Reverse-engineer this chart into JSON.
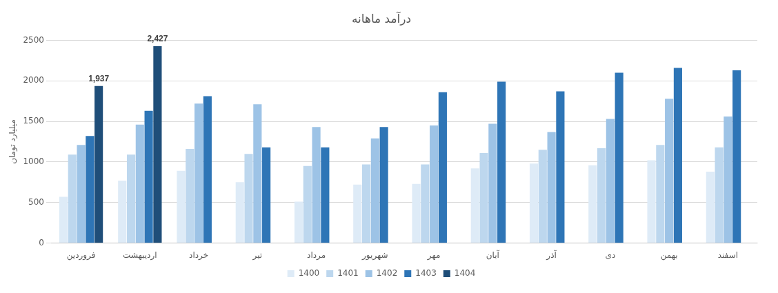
{
  "chart_data": {
    "type": "bar",
    "title": "درآمد ماهانه",
    "ylabel": "میلیارد تومان",
    "categories": [
      "فروردین",
      "اردیبهشت",
      "خرداد",
      "تیر",
      "مرداد",
      "شهریور",
      "مهر",
      "آبان",
      "آذر",
      "دی",
      "بهمن",
      "اسفند"
    ],
    "series": [
      {
        "name": "1400",
        "color": "#deebf7",
        "values": [
          570,
          770,
          890,
          750,
          510,
          720,
          730,
          920,
          980,
          960,
          1020,
          880
        ]
      },
      {
        "name": "1401",
        "color": "#bdd7ee",
        "values": [
          1090,
          1090,
          1160,
          1100,
          950,
          970,
          970,
          1110,
          1150,
          1170,
          1210,
          1180
        ]
      },
      {
        "name": "1402",
        "color": "#9dc3e6",
        "values": [
          1210,
          1460,
          1720,
          1710,
          1430,
          1290,
          1450,
          1470,
          1370,
          1530,
          1780,
          1560
        ]
      },
      {
        "name": "1403",
        "color": "#2e75b6",
        "values": [
          1320,
          1630,
          1810,
          1180,
          1180,
          1430,
          1860,
          1990,
          1870,
          2100,
          2160,
          2130
        ]
      },
      {
        "name": "1404",
        "color": "#1f4e79",
        "values": [
          1937,
          2427,
          null,
          null,
          null,
          null,
          null,
          null,
          null,
          null,
          null,
          null
        ],
        "value_labels": [
          "1,937",
          "2,427",
          null,
          null,
          null,
          null,
          null,
          null,
          null,
          null,
          null,
          null
        ]
      }
    ],
    "ylim": [
      0,
      2500
    ],
    "yticks": [
      0,
      500,
      1000,
      1500,
      2000,
      2500
    ],
    "grid": "y",
    "legend": "bottom"
  }
}
